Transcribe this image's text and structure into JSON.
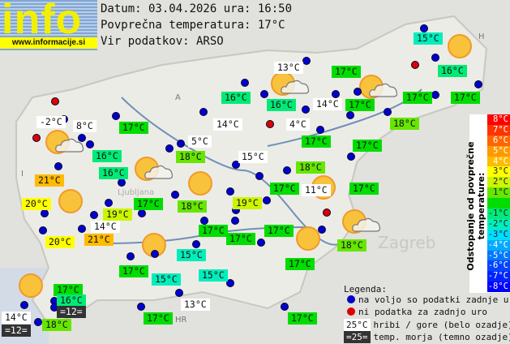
{
  "logo": {
    "text": "info",
    "url": "www.informacije.si"
  },
  "header": {
    "date_line": "Datum: 03.04.2026 ura: 16:50",
    "avg_line": "Povprečna temperatura: 17°C",
    "source_line": "Vir podatkov: ARSO"
  },
  "colors": {
    "hills_bg": "#ffffff",
    "sea_bg": "#333333",
    "dot_available": "#0000cc",
    "dot_missing": "#dd0000"
  },
  "stations": [
    {
      "t": "-2°C",
      "k": "hill"
    },
    {
      "t": "8°C",
      "k": "hill"
    },
    {
      "t": "17°C",
      "k": "0"
    },
    {
      "t": "16°C",
      "k": "-1"
    },
    {
      "t": "16°C",
      "k": "-1"
    },
    {
      "t": "21°C",
      "k": "4"
    },
    {
      "t": "20°C",
      "k": "3"
    },
    {
      "t": "19°C",
      "k": "2"
    },
    {
      "t": "17°C",
      "k": "0"
    },
    {
      "t": "14°C",
      "k": "hill"
    },
    {
      "t": "20°C",
      "k": "3"
    },
    {
      "t": "21°C",
      "k": "4"
    },
    {
      "t": "14°C",
      "k": "hill"
    },
    {
      "t": "5°C",
      "k": "hill"
    },
    {
      "t": "18°C",
      "k": "1"
    },
    {
      "t": "15°C",
      "k": "hill"
    },
    {
      "t": "18°C",
      "k": "1"
    },
    {
      "t": "19°C",
      "k": "2"
    },
    {
      "t": "17°C",
      "k": "0"
    },
    {
      "t": "17°C",
      "k": "0"
    },
    {
      "t": "17°C",
      "k": "0"
    },
    {
      "t": "15°C",
      "k": "-2"
    },
    {
      "t": "17°C",
      "k": "0"
    },
    {
      "t": "15°C",
      "k": "-2"
    },
    {
      "t": "15°C",
      "k": "-2"
    },
    {
      "t": "13°C",
      "k": "hill"
    },
    {
      "t": "17°C",
      "k": "0"
    },
    {
      "t": "16°C",
      "k": "-1"
    },
    {
      "t": "=12=",
      "k": "sea"
    },
    {
      "t": "14°C",
      "k": "hill"
    },
    {
      "t": "=12=",
      "k": "sea"
    },
    {
      "t": "18°C",
      "k": "1"
    },
    {
      "t": "17°C",
      "k": "0"
    },
    {
      "t": "17°C",
      "k": "0"
    },
    {
      "t": "15°C",
      "k": "-2"
    },
    {
      "t": "16°C",
      "k": "-1"
    },
    {
      "t": "13°C",
      "k": "hill"
    },
    {
      "t": "17°C",
      "k": "0"
    },
    {
      "t": "16°C",
      "k": "-1"
    },
    {
      "t": "16°C",
      "k": "-1"
    },
    {
      "t": "14°C",
      "k": "hill"
    },
    {
      "t": "17°C",
      "k": "0"
    },
    {
      "t": "17°C",
      "k": "0"
    },
    {
      "t": "17°C",
      "k": "0"
    },
    {
      "t": "18°C",
      "k": "1"
    },
    {
      "t": "4°C",
      "k": "hill"
    },
    {
      "t": "17°C",
      "k": "0"
    },
    {
      "t": "17°C",
      "k": "0"
    },
    {
      "t": "18°C",
      "k": "1"
    },
    {
      "t": "17°C",
      "k": "0"
    },
    {
      "t": "11°C",
      "k": "hill"
    },
    {
      "t": "17°C",
      "k": "0"
    },
    {
      "t": "18°C",
      "k": "1"
    },
    {
      "t": "17°C",
      "k": "0"
    }
  ],
  "scale": {
    "title": "Odstopanje od povprečne temperature:",
    "steps": [
      {
        "label": "8°C",
        "color": "#ff0000"
      },
      {
        "label": "7°C",
        "color": "#ff3300"
      },
      {
        "label": "6°C",
        "color": "#ff6600"
      },
      {
        "label": "5°C",
        "color": "#ff9900"
      },
      {
        "label": "4°C",
        "color": "#ffbb00"
      },
      {
        "label": "3°C",
        "color": "#ffff00"
      },
      {
        "label": "2°C",
        "color": "#ccf500"
      },
      {
        "label": "1°C",
        "color": "#66e600"
      },
      {
        "label": "",
        "color": "#00dd00"
      },
      {
        "label": "-1°C",
        "color": "#00ea77"
      },
      {
        "label": "-2°C",
        "color": "#00eebb"
      },
      {
        "label": "-3°C",
        "color": "#00ddff"
      },
      {
        "label": "-4°C",
        "color": "#00aaff"
      },
      {
        "label": "-5°C",
        "color": "#0077ff"
      },
      {
        "label": "-6°C",
        "color": "#0044ff"
      },
      {
        "label": "-7°C",
        "color": "#0022ff"
      },
      {
        "label": "-8°C",
        "color": "#0000ff"
      }
    ]
  },
  "legend": {
    "title": "Legenda:",
    "available": "na voljo so podatki zadnje ure",
    "missing": "ni podatka za zadnjo uro",
    "hills_sample": "25°C",
    "hills": "hribi / gore (belo ozadje)",
    "sea_sample": "=25=",
    "sea": "temp. morja (temno ozadje)"
  },
  "map_labels": {
    "ljubljana": "Ljubljana",
    "zagreb": "Zagreb",
    "at": "A",
    "it": "I",
    "hu": "H",
    "hr": "HR"
  }
}
